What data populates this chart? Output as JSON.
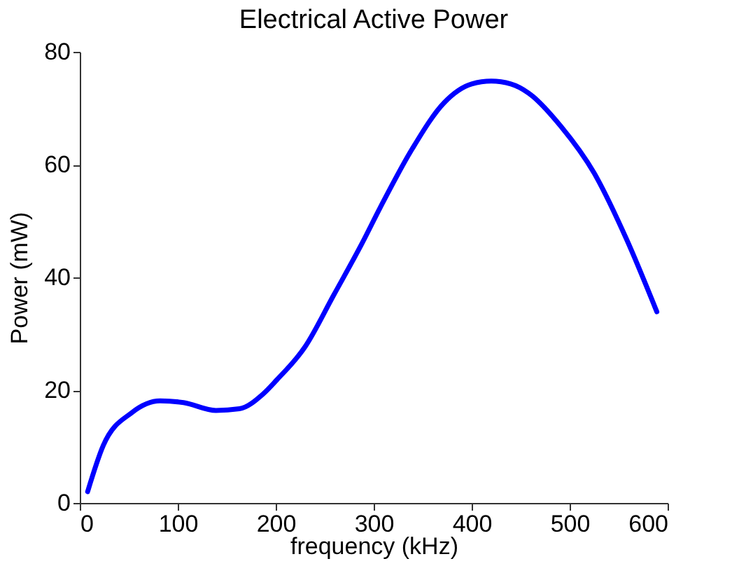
{
  "chart_data": {
    "type": "line",
    "title": "Electrical Active Power",
    "xlabel": "frequency (kHz)",
    "ylabel": "Power (mW)",
    "x": [
      8,
      24,
      53,
      82,
      106,
      139,
      163,
      187,
      201,
      230,
      259,
      288,
      307,
      339,
      372,
      400,
      420,
      440,
      458,
      491,
      525,
      558,
      589
    ],
    "series": [
      {
        "color": "#0000ff",
        "values": [
          2,
          10.2,
          16,
          18.1,
          17.8,
          16.4,
          16.7,
          19.3,
          21.8,
          27.7,
          36.8,
          46,
          52.5,
          62.7,
          71,
          74.3,
          74.8,
          74.3,
          72.7,
          66.8,
          58.5,
          46.8,
          33.9
        ]
      }
    ],
    "xlim": [
      0,
      600
    ],
    "xticks": [
      0,
      100,
      200,
      300,
      400,
      500,
      600
    ],
    "ylim": [
      0,
      80
    ],
    "yticks": [
      0,
      20,
      40,
      60,
      80
    ],
    "grid": false,
    "marker": "none",
    "line_style": "solid"
  }
}
